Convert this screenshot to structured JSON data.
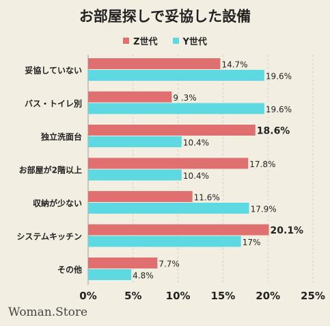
{
  "chart_data": {
    "type": "bar",
    "orientation": "horizontal",
    "title": "お部屋探しで妥協した設備",
    "categories": [
      "妥協していない",
      "バス・トイレ別",
      "独立洗面台",
      "お部屋が2階以上",
      "収納が少ない",
      "システムキッチン",
      "その他"
    ],
    "series": [
      {
        "name": "Z世代",
        "color": "#e07070",
        "values": [
          14.7,
          9.3,
          18.6,
          17.8,
          11.6,
          20.1,
          7.7
        ],
        "labels": [
          "14.7%",
          "9 .3%",
          "18.6%",
          "17.8%",
          "11.6%",
          "20.1%",
          "7.7%"
        ],
        "bold_labels": [
          false,
          false,
          true,
          false,
          false,
          true,
          false
        ]
      },
      {
        "name": "Y世代",
        "color": "#5ed9e2",
        "values": [
          19.6,
          19.6,
          10.4,
          10.4,
          17.9,
          17,
          4.8
        ],
        "labels": [
          "19.6%",
          "19.6%",
          "10.4%",
          "10.4%",
          "17.9%",
          "17%",
          "4.8%"
        ],
        "bold_labels": [
          false,
          false,
          false,
          false,
          false,
          false,
          false
        ]
      }
    ],
    "xlim": [
      0,
      25
    ],
    "xticks": [
      "0%",
      "5%",
      "10%",
      "15%",
      "20%",
      "25%"
    ],
    "legend_position": "top-center",
    "grid": true
  },
  "brand": "Woman.Store"
}
